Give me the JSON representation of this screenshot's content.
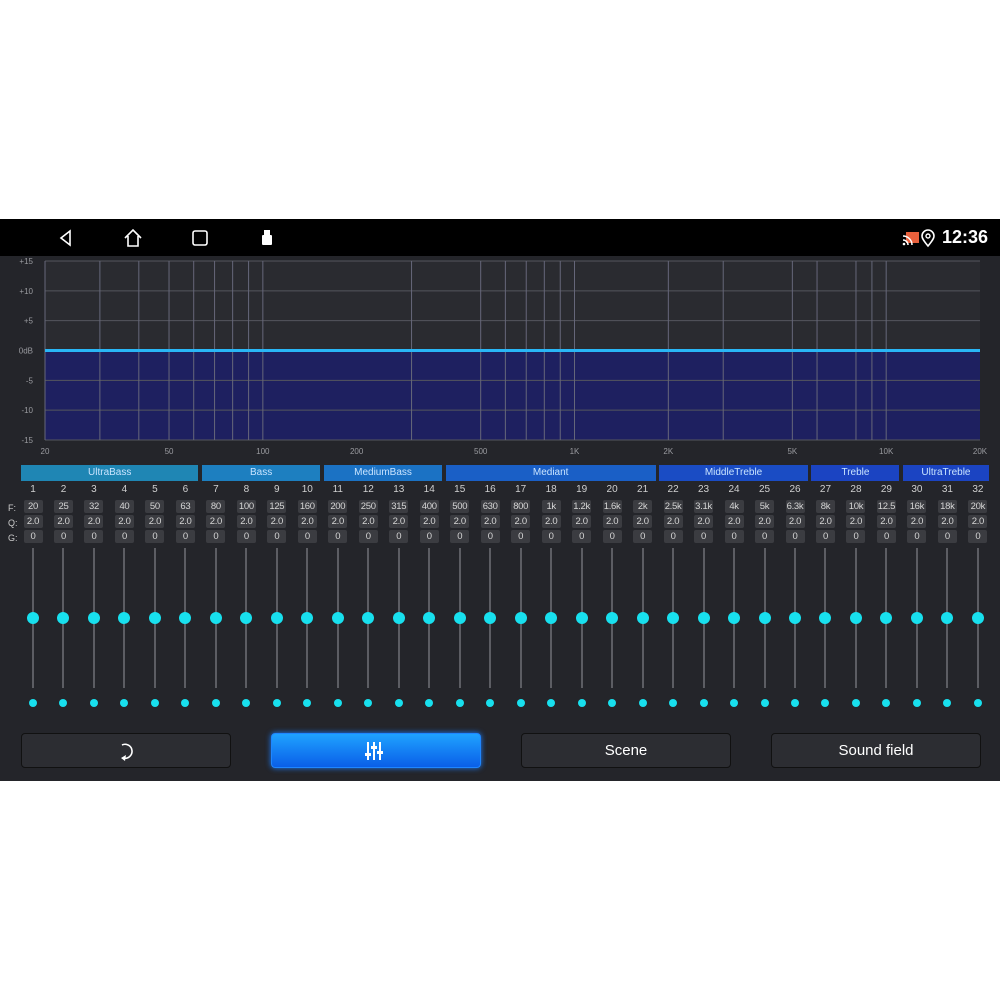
{
  "status_bar": {
    "time": "12:36",
    "icons": [
      "back-icon",
      "home-icon",
      "recents-icon",
      "usb-icon",
      "cast-icon",
      "location-icon"
    ]
  },
  "chart_data": {
    "type": "line",
    "x_scale": "log",
    "xlim": [
      20,
      20000
    ],
    "ylim": [
      -15,
      15
    ],
    "y_ticks": [
      "+15",
      "+10",
      "+5",
      "0dB",
      "-5",
      "-10",
      "-15"
    ],
    "x_ticks": [
      "20",
      "50",
      "100",
      "200",
      "500",
      "1K",
      "2K",
      "5K",
      "10K",
      "20K"
    ],
    "x_tick_values": [
      20,
      50,
      100,
      200,
      500,
      1000,
      2000,
      5000,
      10000,
      20000
    ],
    "grid": true,
    "grid_x": [
      30,
      40,
      50,
      60,
      70,
      80,
      90,
      100,
      300,
      500,
      600,
      700,
      800,
      900,
      1000,
      2000,
      3000,
      5000,
      6000,
      8000,
      9000,
      10000
    ],
    "series": [
      {
        "x": [
          20,
          20000
        ],
        "y": [
          0,
          0
        ]
      }
    ],
    "line_color": "#29b6f6",
    "fill_color": "#1e2060"
  },
  "groups": [
    {
      "label": "UltraBass",
      "from": 1,
      "to": 6
    },
    {
      "label": "Bass",
      "from": 7,
      "to": 10
    },
    {
      "label": "MediumBass",
      "from": 11,
      "to": 14
    },
    {
      "label": "Mediant",
      "from": 15,
      "to": 21
    },
    {
      "label": "MiddleTreble",
      "from": 22,
      "to": 26
    },
    {
      "label": "Treble",
      "from": 27,
      "to": 29
    },
    {
      "label": "UltraTreble",
      "from": 30,
      "to": 32
    }
  ],
  "row_labels": {
    "f": "F:",
    "q": "Q:",
    "g": "G:"
  },
  "bands": {
    "numbers": [
      "1",
      "2",
      "3",
      "4",
      "5",
      "6",
      "7",
      "8",
      "9",
      "10",
      "11",
      "12",
      "13",
      "14",
      "15",
      "16",
      "17",
      "18",
      "19",
      "20",
      "21",
      "22",
      "23",
      "24",
      "25",
      "26",
      "27",
      "28",
      "29",
      "30",
      "31",
      "32"
    ],
    "freq": [
      "20",
      "25",
      "32",
      "40",
      "50",
      "63",
      "80",
      "100",
      "125",
      "160",
      "200",
      "250",
      "315",
      "400",
      "500",
      "630",
      "800",
      "1k",
      "1.2k",
      "1.6k",
      "2k",
      "2.5k",
      "3.1k",
      "4k",
      "5k",
      "6.3k",
      "8k",
      "10k",
      "12.5",
      "16k",
      "18k",
      "20k"
    ],
    "q": [
      "2.0",
      "2.0",
      "2.0",
      "2.0",
      "2.0",
      "2.0",
      "2.0",
      "2.0",
      "2.0",
      "2.0",
      "2.0",
      "2.0",
      "2.0",
      "2.0",
      "2.0",
      "2.0",
      "2.0",
      "2.0",
      "2.0",
      "2.0",
      "2.0",
      "2.0",
      "2.0",
      "2.0",
      "2.0",
      "2.0",
      "2.0",
      "2.0",
      "2.0",
      "2.0",
      "2.0",
      "2.0"
    ],
    "gain": [
      "0",
      "0",
      "0",
      "0",
      "0",
      "0",
      "0",
      "0",
      "0",
      "0",
      "0",
      "0",
      "0",
      "0",
      "0",
      "0",
      "0",
      "0",
      "0",
      "0",
      "0",
      "0",
      "0",
      "0",
      "0",
      "0",
      "0",
      "0",
      "0",
      "0",
      "0",
      "0"
    ],
    "gain_range": [
      -15,
      15
    ]
  },
  "buttons": {
    "reset_icon": "reset-icon",
    "eq_icon": "equalizer-icon",
    "scene": "Scene",
    "sound_field": "Sound field",
    "active": "equalizer"
  }
}
